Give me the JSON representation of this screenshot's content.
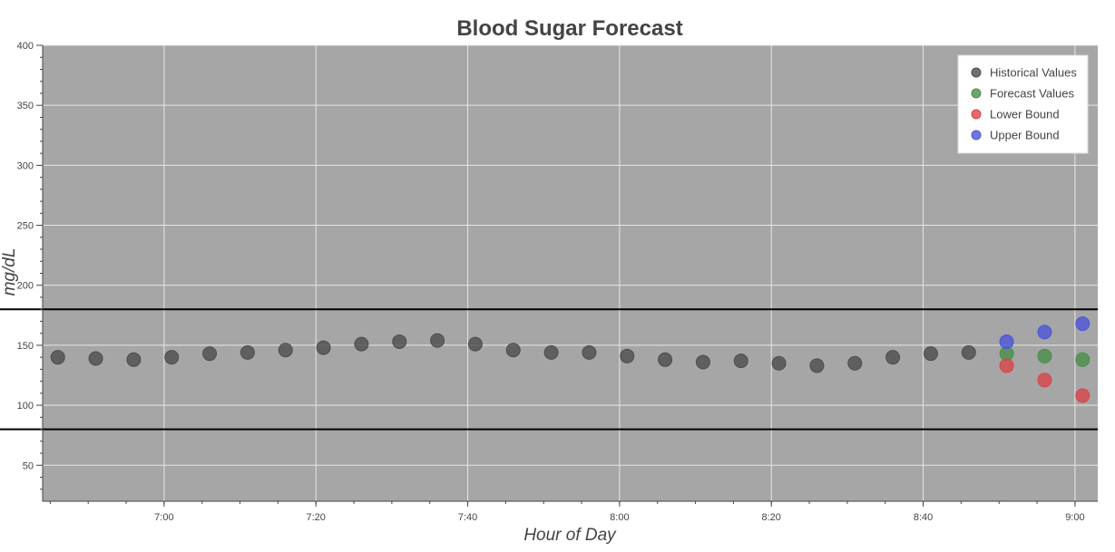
{
  "chart_data": {
    "type": "scatter",
    "title": "Blood Sugar Forecast",
    "xlabel": "Hour of Day",
    "ylabel": "mg/dL",
    "x_unit": "clock time",
    "xlim": [
      "6:44",
      "9:03"
    ],
    "ylim": [
      20,
      400
    ],
    "x_ticks": [
      "7:00",
      "7:20",
      "7:40",
      "8:00",
      "8:20",
      "8:40",
      "9:00"
    ],
    "y_ticks": [
      50,
      100,
      150,
      200,
      250,
      300,
      350,
      400
    ],
    "grid": true,
    "legend_position": "top-right",
    "reference_lines": [
      80,
      180
    ],
    "series": [
      {
        "name": "Historical Values",
        "color": "#4d4d4d",
        "points": [
          {
            "x": "6:46",
            "y": 140
          },
          {
            "x": "6:51",
            "y": 139
          },
          {
            "x": "6:56",
            "y": 138
          },
          {
            "x": "7:01",
            "y": 140
          },
          {
            "x": "7:06",
            "y": 143
          },
          {
            "x": "7:11",
            "y": 144
          },
          {
            "x": "7:16",
            "y": 146
          },
          {
            "x": "7:21",
            "y": 148
          },
          {
            "x": "7:26",
            "y": 151
          },
          {
            "x": "7:31",
            "y": 153
          },
          {
            "x": "7:36",
            "y": 154
          },
          {
            "x": "7:41",
            "y": 151
          },
          {
            "x": "7:46",
            "y": 146
          },
          {
            "x": "7:51",
            "y": 144
          },
          {
            "x": "7:56",
            "y": 144
          },
          {
            "x": "8:01",
            "y": 141
          },
          {
            "x": "8:06",
            "y": 138
          },
          {
            "x": "8:11",
            "y": 136
          },
          {
            "x": "8:16",
            "y": 137
          },
          {
            "x": "8:21",
            "y": 135
          },
          {
            "x": "8:26",
            "y": 133
          },
          {
            "x": "8:31",
            "y": 135
          },
          {
            "x": "8:36",
            "y": 140
          },
          {
            "x": "8:41",
            "y": 143
          },
          {
            "x": "8:46",
            "y": 144
          }
        ]
      },
      {
        "name": "Forecast Values",
        "color": "#4a8f4a",
        "points": [
          {
            "x": "8:51",
            "y": 143
          },
          {
            "x": "8:56",
            "y": 141
          },
          {
            "x": "9:01",
            "y": 138
          }
        ]
      },
      {
        "name": "Lower Bound",
        "color": "#d9454a",
        "points": [
          {
            "x": "8:51",
            "y": 133
          },
          {
            "x": "8:56",
            "y": 121
          },
          {
            "x": "9:01",
            "y": 108
          }
        ]
      },
      {
        "name": "Upper Bound",
        "color": "#4f55d8",
        "points": [
          {
            "x": "8:51",
            "y": 153
          },
          {
            "x": "8:56",
            "y": 161
          },
          {
            "x": "9:01",
            "y": 168
          }
        ]
      }
    ]
  }
}
